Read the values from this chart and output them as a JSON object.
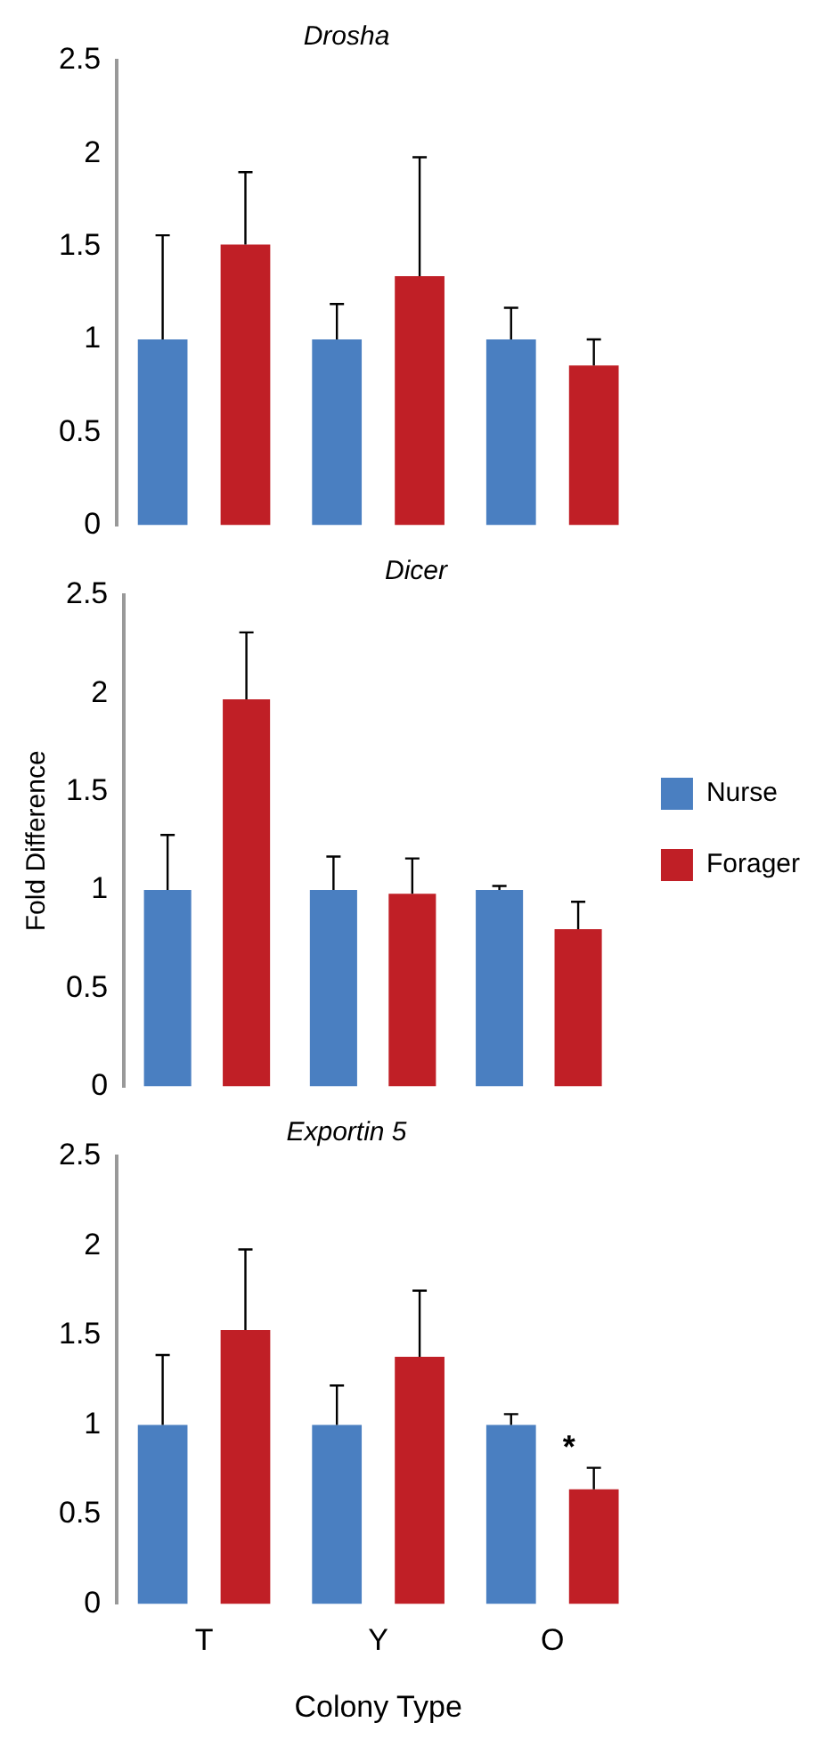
{
  "chart_data": [
    {
      "type": "bar",
      "title": "Drosha",
      "categories": [
        null,
        null,
        null
      ],
      "ylim": [
        0,
        2.5
      ],
      "yticks": [
        0,
        0.5,
        1,
        1.5,
        2,
        2.5
      ],
      "tick_labels": "y",
      "legend": false,
      "series": [
        {
          "color": "#4a7fc1",
          "values": [
            1,
            1,
            1
          ],
          "errors": [
            [
              1,
              1.56
            ],
            [
              1,
              1.19
            ],
            [
              1,
              1.17
            ]
          ]
        },
        {
          "color": "#c01f26",
          "values": [
            1.51,
            1.34,
            0.86
          ],
          "errors": [
            [
              1.51,
              1.9
            ],
            [
              1.34,
              1.98
            ],
            [
              0.86,
              1.0
            ]
          ]
        }
      ]
    },
    {
      "type": "bar",
      "title": "Dicer",
      "ylabel": "Fold Difference",
      "categories": [
        null,
        null,
        null
      ],
      "ylim": [
        0,
        2.5
      ],
      "yticks": [
        0,
        0.5,
        1,
        1.5,
        2,
        2.5
      ],
      "tick_labels": "y",
      "legend": "right",
      "series": [
        {
          "name": "Nurse",
          "color": "#4a7fc1",
          "values": [
            1,
            1,
            1
          ],
          "errors": [
            [
              1,
              1.28
            ],
            [
              1,
              1.17
            ],
            [
              1,
              1.02
            ]
          ]
        },
        {
          "name": "Forager",
          "color": "#c01f26",
          "values": [
            1.97,
            0.98,
            0.8
          ],
          "errors": [
            [
              1.97,
              2.31
            ],
            [
              0.98,
              1.16
            ],
            [
              0.8,
              0.94
            ]
          ]
        }
      ]
    },
    {
      "type": "bar",
      "title": "Exportin 5",
      "xlabel": "Colony Type",
      "categories": [
        "T",
        "Y",
        "O"
      ],
      "ylim": [
        0,
        2.5
      ],
      "yticks": [
        0,
        0.5,
        1,
        1.5,
        2,
        2.5
      ],
      "legend": false,
      "annotations": [
        "*"
      ],
      "series": [
        {
          "color": "#4a7fc1",
          "values": [
            1,
            1,
            1
          ],
          "errors": [
            [
              1,
              1.39
            ],
            [
              1,
              1.22
            ],
            [
              1,
              1.06
            ]
          ]
        },
        {
          "color": "#c01f26",
          "values": [
            1.53,
            1.38,
            0.64
          ],
          "errors": [
            [
              1.53,
              1.98
            ],
            [
              1.38,
              1.75
            ],
            [
              0.64,
              0.76
            ]
          ]
        }
      ]
    }
  ]
}
